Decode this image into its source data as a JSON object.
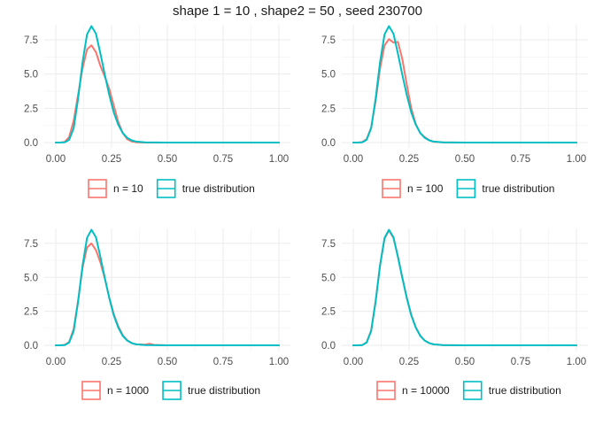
{
  "title": "shape 1 = 10 , shape2 = 50 , seed 230700",
  "colors": {
    "sample": "#F8766D",
    "true": "#00BFC4"
  },
  "chart_data": [
    {
      "type": "line",
      "xlim": [
        0,
        1
      ],
      "ylim": [
        0,
        8.6
      ],
      "x_ticks": [
        "0.00",
        "0.25",
        "0.50",
        "0.75",
        "1.00"
      ],
      "y_ticks": [
        "0.0",
        "2.5",
        "5.0",
        "7.5"
      ],
      "grid": true,
      "legend_position": "bottom",
      "series": [
        {
          "name": "n = 10",
          "x": [
            0,
            0.02,
            0.04,
            0.06,
            0.08,
            0.1,
            0.12,
            0.14,
            0.16,
            0.18,
            0.2,
            0.22,
            0.24,
            0.26,
            0.28,
            0.3,
            0.32,
            0.34,
            0.36,
            0.4,
            0.5,
            0.75,
            1.0
          ],
          "y": [
            0,
            0,
            0.05,
            0.4,
            1.6,
            3.5,
            5.4,
            6.8,
            7.1,
            6.6,
            5.6,
            4.8,
            3.9,
            2.7,
            1.5,
            0.7,
            0.25,
            0.08,
            0.02,
            0,
            0,
            0,
            0
          ]
        },
        {
          "name": "true distribution",
          "x": [
            0,
            0.02,
            0.04,
            0.06,
            0.08,
            0.1,
            0.12,
            0.14,
            0.16,
            0.18,
            0.2,
            0.22,
            0.24,
            0.26,
            0.28,
            0.3,
            0.32,
            0.34,
            0.36,
            0.4,
            0.5,
            0.75,
            1.0
          ],
          "y": [
            0,
            0,
            0.02,
            0.2,
            1.05,
            3.2,
            5.85,
            7.9,
            8.5,
            7.95,
            6.5,
            4.95,
            3.45,
            2.2,
            1.3,
            0.7,
            0.35,
            0.16,
            0.07,
            0.01,
            0,
            0,
            0
          ]
        }
      ]
    },
    {
      "type": "line",
      "xlim": [
        0,
        1
      ],
      "ylim": [
        0,
        8.6
      ],
      "x_ticks": [
        "0.00",
        "0.25",
        "0.50",
        "0.75",
        "1.00"
      ],
      "y_ticks": [
        "0.0",
        "2.5",
        "5.0",
        "7.5"
      ],
      "grid": true,
      "legend_position": "bottom",
      "series": [
        {
          "name": "n = 100",
          "x": [
            0,
            0.02,
            0.04,
            0.06,
            0.08,
            0.1,
            0.12,
            0.14,
            0.16,
            0.18,
            0.2,
            0.22,
            0.24,
            0.26,
            0.28,
            0.3,
            0.32,
            0.34,
            0.36,
            0.4,
            0.5,
            0.75,
            1.0
          ],
          "y": [
            0,
            0,
            0.03,
            0.25,
            1.1,
            3.0,
            5.4,
            7.1,
            7.55,
            7.3,
            7.35,
            6.1,
            4.2,
            2.5,
            1.35,
            0.7,
            0.4,
            0.18,
            0.06,
            0.01,
            0,
            0,
            0
          ]
        },
        {
          "name": "true distribution",
          "x": [
            0,
            0.02,
            0.04,
            0.06,
            0.08,
            0.1,
            0.12,
            0.14,
            0.16,
            0.18,
            0.2,
            0.22,
            0.24,
            0.26,
            0.28,
            0.3,
            0.32,
            0.34,
            0.36,
            0.4,
            0.5,
            0.75,
            1.0
          ],
          "y": [
            0,
            0,
            0.02,
            0.2,
            1.05,
            3.2,
            5.85,
            7.9,
            8.5,
            7.95,
            6.5,
            4.95,
            3.45,
            2.2,
            1.3,
            0.7,
            0.35,
            0.16,
            0.07,
            0.01,
            0,
            0,
            0
          ]
        }
      ]
    },
    {
      "type": "line",
      "xlim": [
        0,
        1
      ],
      "ylim": [
        0,
        8.6
      ],
      "x_ticks": [
        "0.00",
        "0.25",
        "0.50",
        "0.75",
        "1.00"
      ],
      "y_ticks": [
        "0.0",
        "2.5",
        "5.0",
        "7.5"
      ],
      "grid": true,
      "legend_position": "bottom",
      "series": [
        {
          "name": "n = 1000",
          "x": [
            0,
            0.02,
            0.04,
            0.06,
            0.08,
            0.1,
            0.12,
            0.14,
            0.16,
            0.18,
            0.2,
            0.22,
            0.24,
            0.26,
            0.28,
            0.3,
            0.32,
            0.34,
            0.36,
            0.4,
            0.42,
            0.44,
            0.5,
            0.75,
            1.0
          ],
          "y": [
            0,
            0,
            0.03,
            0.25,
            1.2,
            3.3,
            5.7,
            7.2,
            7.5,
            7.0,
            6.1,
            4.9,
            3.5,
            2.3,
            1.4,
            0.75,
            0.38,
            0.17,
            0.07,
            0.05,
            0.12,
            0.03,
            0,
            0,
            0
          ]
        },
        {
          "name": "true distribution",
          "x": [
            0,
            0.02,
            0.04,
            0.06,
            0.08,
            0.1,
            0.12,
            0.14,
            0.16,
            0.18,
            0.2,
            0.22,
            0.24,
            0.26,
            0.28,
            0.3,
            0.32,
            0.34,
            0.36,
            0.4,
            0.5,
            0.75,
            1.0
          ],
          "y": [
            0,
            0,
            0.02,
            0.2,
            1.05,
            3.2,
            5.85,
            7.9,
            8.5,
            7.95,
            6.5,
            4.95,
            3.45,
            2.2,
            1.3,
            0.7,
            0.35,
            0.16,
            0.07,
            0.01,
            0,
            0,
            0
          ]
        }
      ]
    },
    {
      "type": "line",
      "xlim": [
        0,
        1
      ],
      "ylim": [
        0,
        8.6
      ],
      "x_ticks": [
        "0.00",
        "0.25",
        "0.50",
        "0.75",
        "1.00"
      ],
      "y_ticks": [
        "0.0",
        "2.5",
        "5.0",
        "7.5"
      ],
      "grid": true,
      "legend_position": "bottom",
      "series": [
        {
          "name": "n = 10000",
          "x": [
            0,
            0.02,
            0.04,
            0.06,
            0.08,
            0.1,
            0.12,
            0.14,
            0.16,
            0.18,
            0.2,
            0.22,
            0.24,
            0.26,
            0.28,
            0.3,
            0.32,
            0.34,
            0.36,
            0.4,
            0.5,
            0.75,
            1.0
          ],
          "y": [
            0,
            0,
            0.02,
            0.22,
            1.1,
            3.25,
            5.9,
            7.85,
            8.45,
            7.9,
            6.55,
            5.0,
            3.5,
            2.25,
            1.32,
            0.72,
            0.36,
            0.17,
            0.07,
            0.01,
            0,
            0,
            0
          ]
        },
        {
          "name": "true distribution",
          "x": [
            0,
            0.02,
            0.04,
            0.06,
            0.08,
            0.1,
            0.12,
            0.14,
            0.16,
            0.18,
            0.2,
            0.22,
            0.24,
            0.26,
            0.28,
            0.3,
            0.32,
            0.34,
            0.36,
            0.4,
            0.5,
            0.75,
            1.0
          ],
          "y": [
            0,
            0,
            0.02,
            0.2,
            1.05,
            3.2,
            5.85,
            7.9,
            8.5,
            7.95,
            6.5,
            4.95,
            3.45,
            2.2,
            1.3,
            0.7,
            0.35,
            0.16,
            0.07,
            0.01,
            0,
            0,
            0
          ]
        }
      ]
    }
  ]
}
